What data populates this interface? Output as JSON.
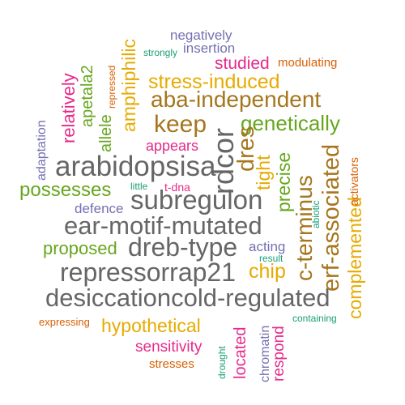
{
  "palette": {
    "green": "#1b9e77",
    "orange": "#d95f02",
    "purple": "#7570b3",
    "magenta": "#e7298a",
    "lime": "#66a61e",
    "gold": "#e6ab02",
    "brown": "#a6761d",
    "gray": "#666666"
  },
  "words": [
    {
      "text": "negatively",
      "color": "#7570b3"
    },
    {
      "text": "strongly",
      "color": "#1b9e77"
    },
    {
      "text": "insertion",
      "color": "#7570b3"
    },
    {
      "text": "studied",
      "color": "#e7298a"
    },
    {
      "text": "modulating",
      "color": "#d95f02"
    },
    {
      "text": "stress-induced",
      "color": "#e6ab02"
    },
    {
      "text": "aba-independent",
      "color": "#a6761d"
    },
    {
      "text": "keep",
      "color": "#a6761d"
    },
    {
      "text": "genetically",
      "color": "#66a61e"
    },
    {
      "text": "appears",
      "color": "#e7298a"
    },
    {
      "text": "arabidopsisa",
      "color": "#666666"
    },
    {
      "text": "possesses",
      "color": "#66a61e"
    },
    {
      "text": "little",
      "color": "#1b9e77"
    },
    {
      "text": "t-dna",
      "color": "#e7298a"
    },
    {
      "text": "subregulon",
      "color": "#666666"
    },
    {
      "text": "defence",
      "color": "#7570b3"
    },
    {
      "text": "ear-motif-mutated",
      "color": "#666666"
    },
    {
      "text": "dreb-type",
      "color": "#666666"
    },
    {
      "text": "proposed",
      "color": "#66a61e"
    },
    {
      "text": "acting",
      "color": "#7570b3"
    },
    {
      "text": "result",
      "color": "#1b9e77"
    },
    {
      "text": "repressorrap21",
      "color": "#666666"
    },
    {
      "text": "chip",
      "color": "#e6ab02"
    },
    {
      "text": "desiccationcold-regulated",
      "color": "#666666"
    },
    {
      "text": "expressing",
      "color": "#d95f02"
    },
    {
      "text": "hypothetical",
      "color": "#e6ab02"
    },
    {
      "text": "containing",
      "color": "#1b9e77"
    },
    {
      "text": "sensitivity",
      "color": "#e7298a"
    },
    {
      "text": "stresses",
      "color": "#d95f02"
    },
    {
      "text": "adaptation",
      "color": "#7570b3"
    },
    {
      "text": "relatively",
      "color": "#e7298a"
    },
    {
      "text": "apetala2",
      "color": "#66a61e"
    },
    {
      "text": "allele",
      "color": "#66a61e"
    },
    {
      "text": "repressed",
      "color": "#d95f02"
    },
    {
      "text": "amphiphilic",
      "color": "#e6ab02"
    },
    {
      "text": "rdcor",
      "color": "#666666"
    },
    {
      "text": "dres",
      "color": "#a6761d"
    },
    {
      "text": "tight",
      "color": "#e6ab02"
    },
    {
      "text": "precise",
      "color": "#66a61e"
    },
    {
      "text": "c-terminus",
      "color": "#a6761d"
    },
    {
      "text": "erf-associated",
      "color": "#a6761d"
    },
    {
      "text": "abiotic",
      "color": "#1b9e77"
    },
    {
      "text": "complemented",
      "color": "#e6ab02"
    },
    {
      "text": "activators",
      "color": "#d95f02"
    },
    {
      "text": "located",
      "color": "#e7298a"
    },
    {
      "text": "drought",
      "color": "#1b9e77"
    },
    {
      "text": "chromatin",
      "color": "#7570b3"
    },
    {
      "text": "respond",
      "color": "#e7298a"
    }
  ]
}
